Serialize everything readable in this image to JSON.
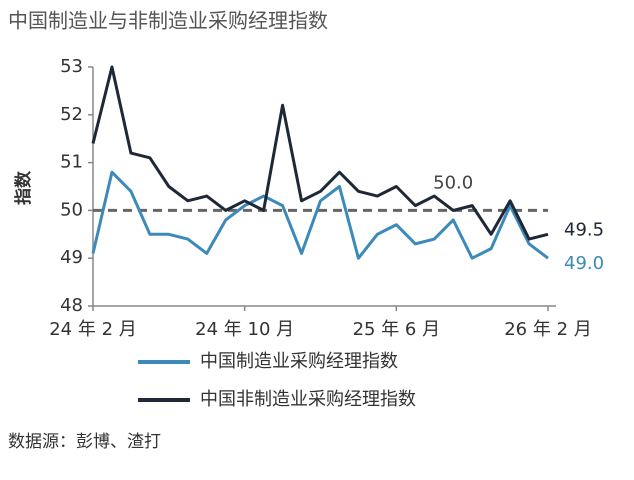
{
  "chart_data": {
    "type": "line",
    "title": "中国制造业与非制造业采购经理指数",
    "y_label": "指数",
    "source": "数据源：彭博、渣打",
    "categories": [
      "24 年 2 月",
      null,
      null,
      null,
      null,
      null,
      null,
      null,
      "24 年 10 月",
      null,
      null,
      null,
      null,
      null,
      null,
      null,
      "25 年 6 月",
      null,
      null,
      null,
      null,
      null,
      null,
      null,
      "26 年 2 月"
    ],
    "series": [
      {
        "name": "中国制造业采购经理指数",
        "color": "#3b8ab9",
        "values": [
          49.1,
          50.8,
          50.4,
          49.5,
          49.5,
          49.4,
          49.1,
          49.8,
          50.1,
          50.3,
          50.1,
          49.1,
          50.2,
          50.5,
          49.0,
          49.5,
          49.7,
          49.3,
          49.4,
          49.8,
          49.0,
          49.2,
          50.1,
          49.3,
          49.0
        ],
        "value_labels": [
          null,
          null,
          null,
          null,
          null,
          null,
          null,
          null,
          null,
          null,
          null,
          null,
          null,
          null,
          null,
          null,
          null,
          null,
          null,
          null,
          null,
          null,
          null,
          null,
          "49.0"
        ]
      },
      {
        "name": "中国非制造业采购经理指数",
        "color": "#1e2836",
        "values": [
          51.4,
          53.0,
          51.2,
          51.1,
          50.5,
          50.2,
          50.3,
          50.0,
          50.2,
          50.0,
          52.2,
          50.2,
          50.4,
          50.8,
          50.4,
          50.3,
          50.5,
          50.1,
          50.3,
          50.0,
          50.1,
          49.5,
          50.2,
          49.4,
          49.5
        ],
        "value_labels": [
          null,
          null,
          null,
          null,
          null,
          null,
          null,
          null,
          null,
          null,
          null,
          null,
          null,
          null,
          null,
          null,
          null,
          null,
          null,
          null,
          null,
          null,
          null,
          null,
          "49.5"
        ]
      }
    ],
    "reference_line": {
      "value": 50,
      "label": "50.0",
      "color": "#666666"
    },
    "ylim": [
      48,
      53
    ],
    "yticks": [
      48,
      49,
      50,
      51,
      52,
      53
    ]
  }
}
